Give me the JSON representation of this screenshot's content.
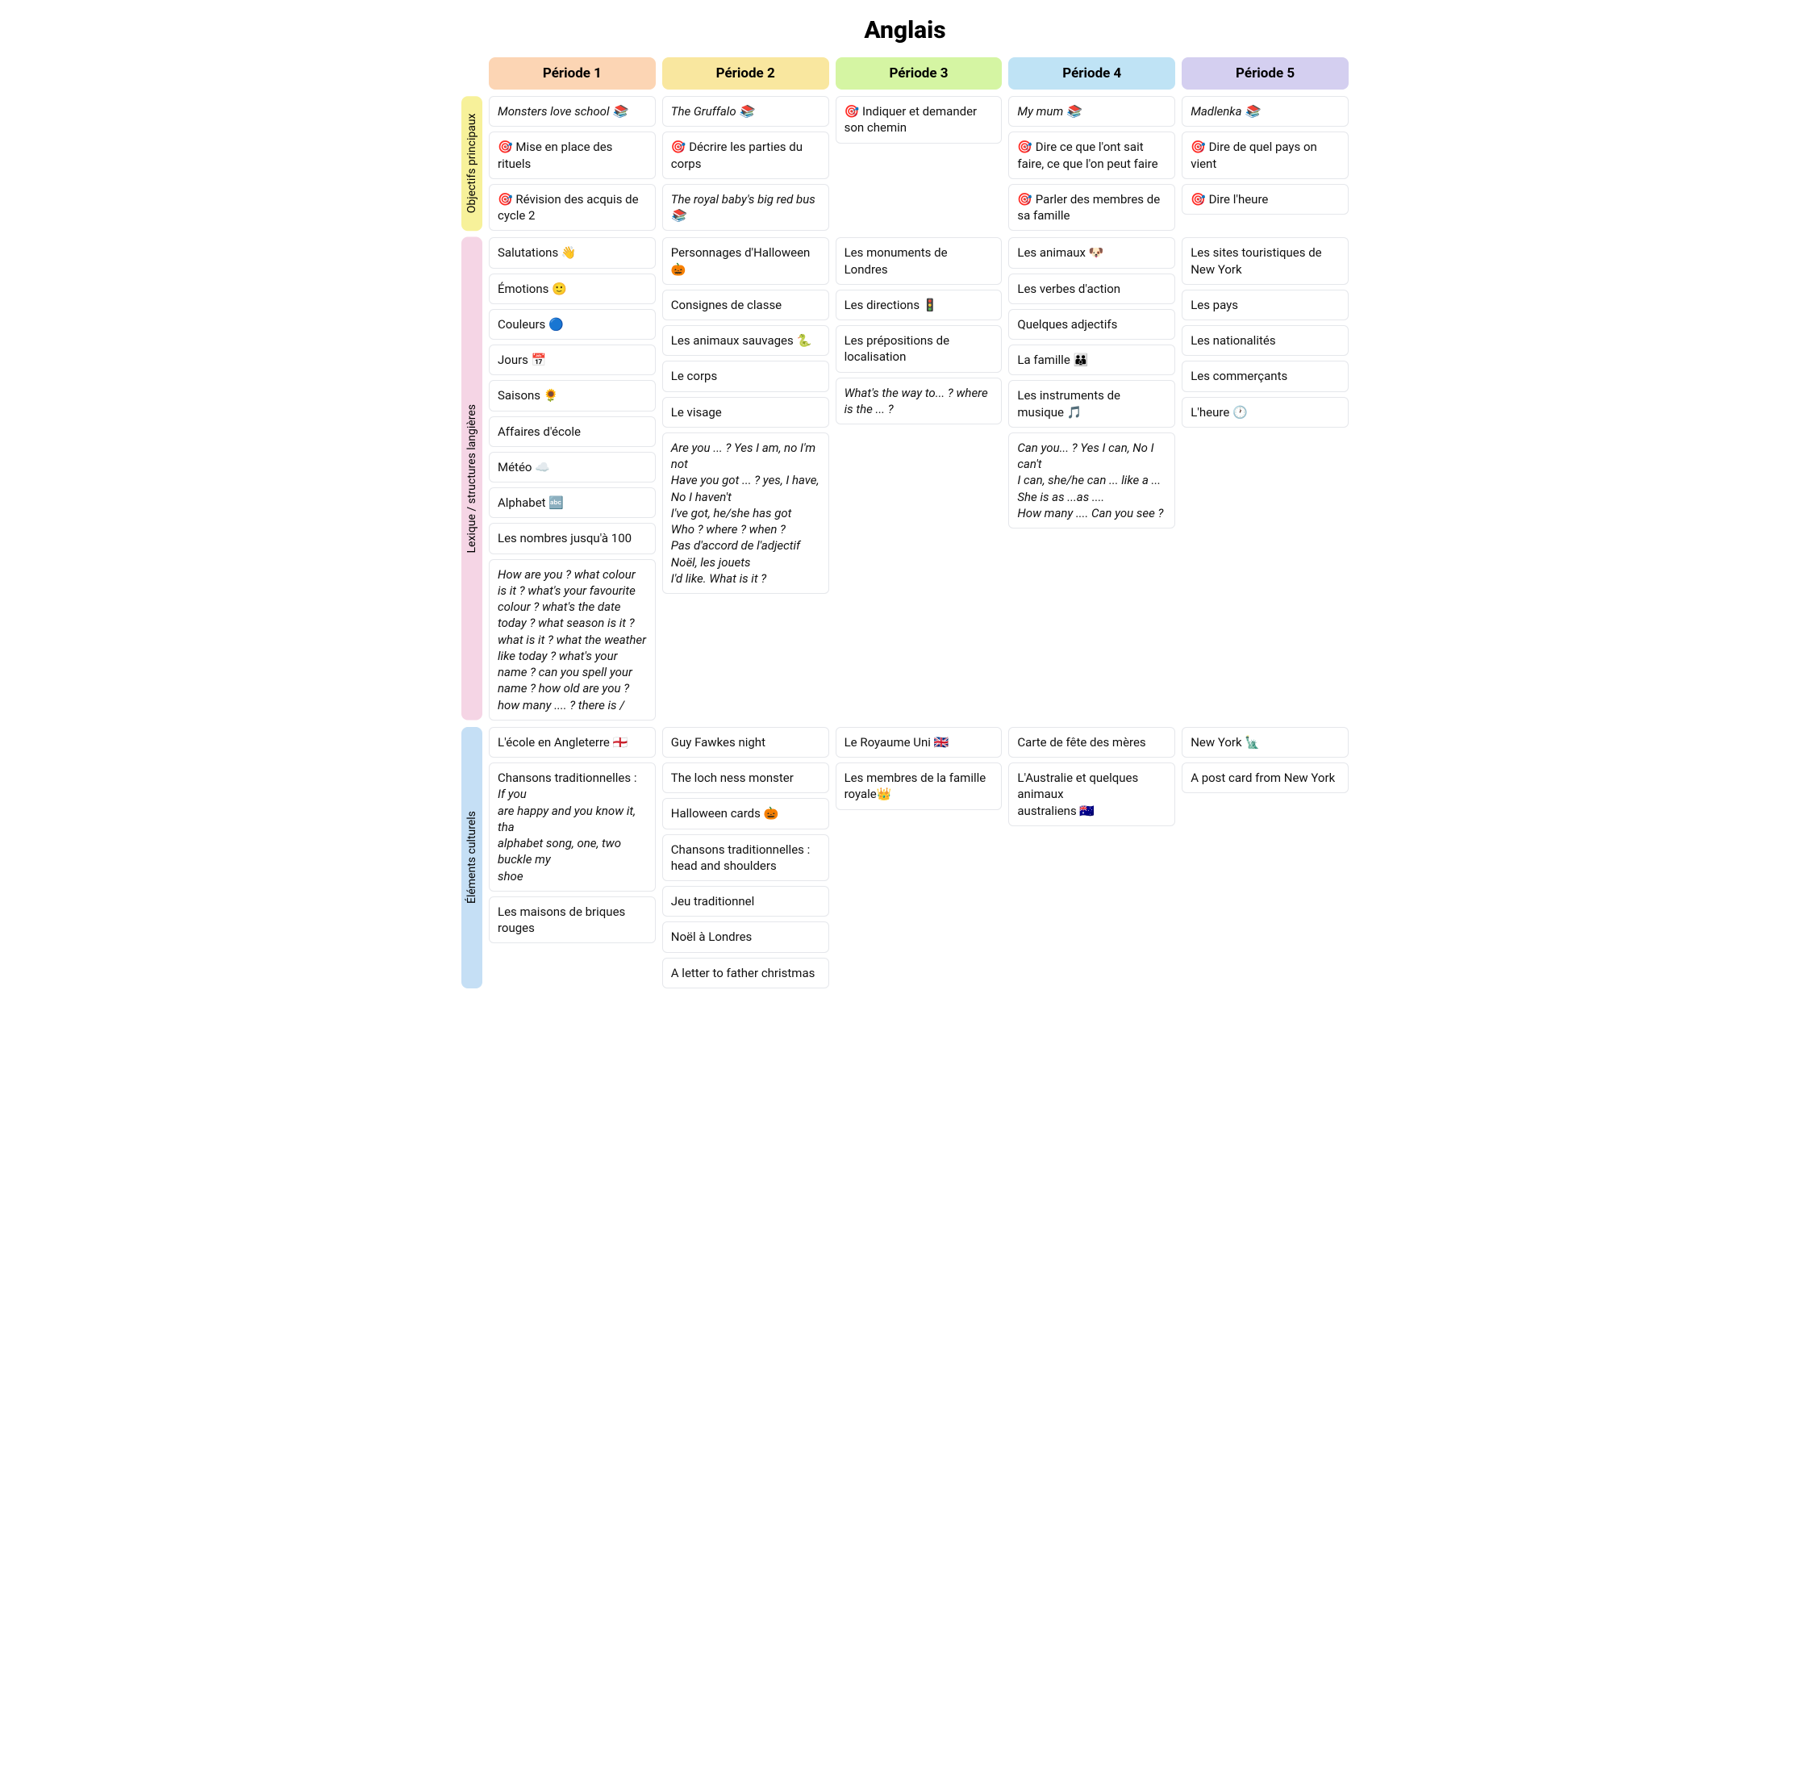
{
  "title": "Anglais",
  "periods": [
    {
      "label": "Période 1",
      "bg": "#fcd5b4"
    },
    {
      "label": "Période 2",
      "bg": "#f9e79f"
    },
    {
      "label": "Période 3",
      "bg": "#d5f5a3"
    },
    {
      "label": "Période 4",
      "bg": "#bfe3f5"
    },
    {
      "label": "Période 5",
      "bg": "#d4cff0"
    }
  ],
  "sections": [
    {
      "label": "Objectifs principaux",
      "bg": "#f7f19a"
    },
    {
      "label": "Lexique / structures langières",
      "bg": "#f5d5e5"
    },
    {
      "label": "Éléments culturels",
      "bg": "#c5dff5"
    }
  ],
  "objectives": {
    "p1": [
      {
        "text": "Monsters love school 📚",
        "italic": true
      },
      {
        "text": "🎯 Mise en place des rituels"
      },
      {
        "text": "🎯 Révision des acquis de cycle 2"
      }
    ],
    "p2": [
      {
        "text": "The Gruffalo 📚",
        "italic": true
      },
      {
        "text": "🎯 Décrire les parties du corps"
      },
      {
        "text": "The royal baby's big red bus 📚",
        "italic": true
      }
    ],
    "p3": [
      {
        "text": "🎯 Indiquer et demander son chemin"
      }
    ],
    "p4": [
      {
        "text": "My mum 📚",
        "italic": true
      },
      {
        "text": "🎯 Dire ce que l'ont sait faire, ce que l'on peut faire"
      },
      {
        "text": "🎯 Parler des membres de sa famille"
      }
    ],
    "p5": [
      {
        "text": "Madlenka 📚",
        "italic": true
      },
      {
        "text": "🎯 Dire de quel pays on vient"
      },
      {
        "text": "🎯 Dire l'heure"
      }
    ]
  },
  "lexique": {
    "p1": [
      {
        "text": "Salutations 👋"
      },
      {
        "text": "Émotions 🙂"
      },
      {
        "text": "Couleurs 🔵"
      },
      {
        "text": "Jours 📅"
      },
      {
        "text": "Saisons 🌻"
      },
      {
        "text": "Affaires d'école"
      },
      {
        "text": "Météo ☁️"
      },
      {
        "text": "Alphabet 🔤"
      },
      {
        "text": "Les nombres jusqu'à 100"
      },
      {
        "text": "How are you ? what colour is it ? what's your favourite colour ? what's the date today ? what season is it ? what is it ? what the weather like today ? what's your name ? can you spell your name ? how old are you ?\nhow many .... ? there is /",
        "italic": true
      }
    ],
    "p2": [
      {
        "text": "Personnages d'Halloween 🎃"
      },
      {
        "text": "Consignes de classe"
      },
      {
        "text": "Les animaux sauvages 🐍"
      },
      {
        "text": "Le corps"
      },
      {
        "text": "Le visage"
      },
      {
        "text": "Are you ... ? Yes I am, no I'm not\nHave you got ... ? yes, I have, No I haven't\nI've got, he/she has got\nWho ? where ? when ?\nPas d'accord de l'adjectif\nNoël, les jouets\nI'd like. What is it ?",
        "italic": true
      }
    ],
    "p3": [
      {
        "text": "Les monuments de Londres"
      },
      {
        "text": "Les directions 🚦"
      },
      {
        "text": "Les prépositions de localisation"
      },
      {
        "text": "What's the way to... ? where is the ... ?",
        "italic": true
      }
    ],
    "p4": [
      {
        "text": "Les animaux 🐶"
      },
      {
        "text": "Les verbes d'action"
      },
      {
        "text": "Quelques adjectifs"
      },
      {
        "text": "La famille 👪"
      },
      {
        "text": "Les instruments de musique 🎵"
      },
      {
        "text": "Can you... ? Yes I can, No I can't\nI can, she/he can ... like a ...\nShe is as ...as ....\nHow many .... Can you see ?",
        "italic": true
      }
    ],
    "p5": [
      {
        "text": "Les sites touristiques de New York"
      },
      {
        "text": "Les pays"
      },
      {
        "text": "Les nationalités"
      },
      {
        "text": "Les commerçants"
      },
      {
        "text": "L'heure 🕐"
      }
    ]
  },
  "culture": {
    "p1": [
      {
        "text": "L'école en Angleterre 🏴󠁧󠁢󠁥󠁮󠁧󠁿"
      },
      {
        "text": "Chansons traditionnelles : If you\nare happy and you know it, tha\nalphabet song, one, two buckle my\nshoe",
        "italic": false,
        "mixed": true
      },
      {
        "text": "Les maisons de briques rouges"
      }
    ],
    "p2": [
      {
        "text": "Guy Fawkes night"
      },
      {
        "text": "The loch ness monster"
      },
      {
        "text": "Halloween cards 🎃"
      },
      {
        "text": "Chansons traditionnelles : head and shoulders"
      },
      {
        "text": "Jeu traditionnel"
      },
      {
        "text": "Noël à Londres"
      },
      {
        "text": "A letter to father christmas"
      }
    ],
    "p3": [
      {
        "text": "Le Royaume Uni 🇬🇧"
      },
      {
        "text": "Les membres de la famille royale👑"
      }
    ],
    "p4": [
      {
        "text": "Carte de fête des mères"
      },
      {
        "text": "L'Australie et quelques animaux\naustraliens 🇦🇺"
      }
    ],
    "p5": [
      {
        "text": "New York 🗽"
      },
      {
        "text": "A post card from New York"
      }
    ]
  }
}
